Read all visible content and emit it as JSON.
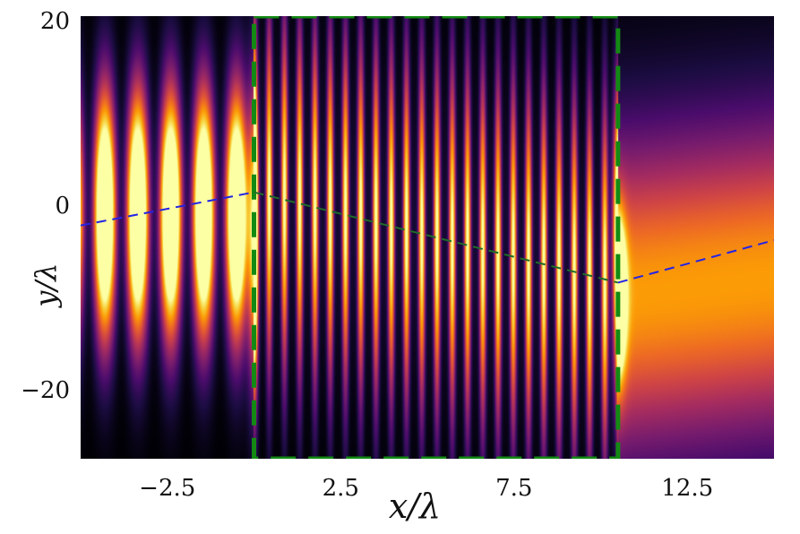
{
  "chart_data": {
    "type": "heatmap",
    "title": "",
    "xlabel": "x/λ",
    "ylabel": "y/λ",
    "xlim": [
      -5.0,
      15.0
    ],
    "ylim": [
      -27.5,
      20.5
    ],
    "x_ticks": [
      -2.5,
      2.5,
      7.5,
      12.5
    ],
    "x_tick_labels": [
      "−2.5",
      "2.5",
      "7.5",
      "12.5"
    ],
    "y_ticks": [
      -20,
      0,
      20
    ],
    "y_tick_labels": [
      "−20",
      "0",
      "20"
    ],
    "colormap": "inferno",
    "colormap_stops": [
      "#000004",
      "#1b0c41",
      "#4a0c6b",
      "#781c6d",
      "#a52c60",
      "#cf4446",
      "#ed6925",
      "#fb9b06",
      "#f7d13d",
      "#fcffa4"
    ],
    "grid": false,
    "slab_region": {
      "x": [
        0.0,
        10.5
      ],
      "y": [
        -27.5,
        20.5
      ],
      "color": "#138a13",
      "style": "dashed"
    },
    "ray_path": {
      "color_outside": "#2323e6",
      "color_inside": "#1f6b2a",
      "style": "dashed",
      "points": [
        {
          "x": -5.0,
          "y": -2.2
        },
        {
          "x": 0.0,
          "y": 1.4
        },
        {
          "x": 10.5,
          "y": -8.4
        },
        {
          "x": 15.0,
          "y": -3.8
        }
      ]
    }
  }
}
